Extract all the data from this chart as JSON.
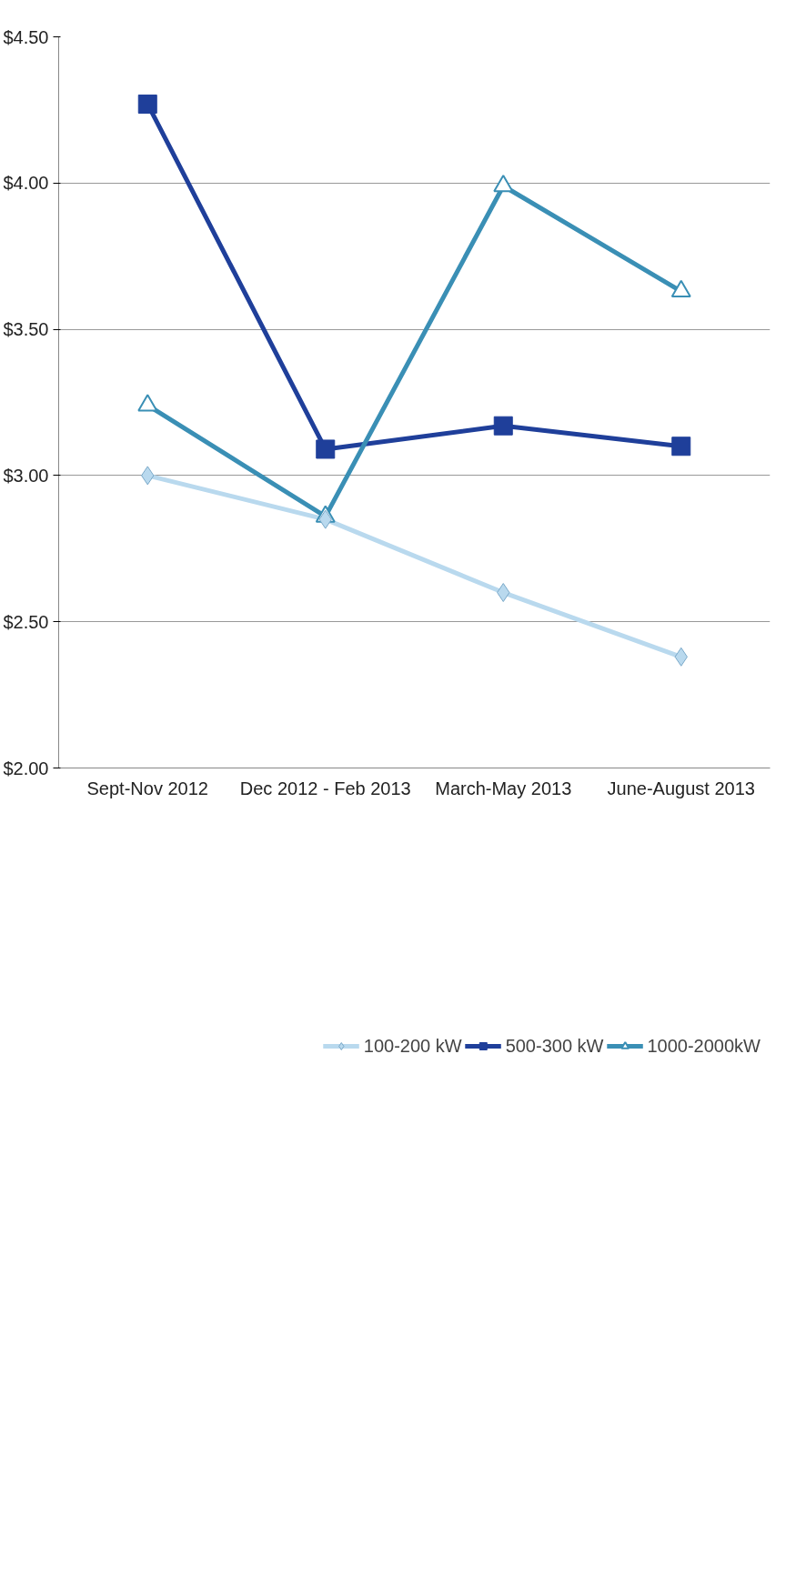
{
  "chart_data": {
    "type": "line",
    "categories": [
      "Sept-Nov 2012",
      "Dec 2012 - Feb 2013",
      "March-May 2013",
      "June-August 2013"
    ],
    "series": [
      {
        "name": "100-200 kW",
        "color": "#b9d9ee",
        "marker": "diamond",
        "values": [
          3.0,
          2.85,
          2.6,
          2.38
        ]
      },
      {
        "name": "500-300 kW",
        "color": "#1f3f9a",
        "marker": "square",
        "values": [
          4.27,
          3.09,
          3.17,
          3.1
        ]
      },
      {
        "name": "1000-2000kW",
        "color": "#3a8fb5",
        "marker": "triangle",
        "values": [
          3.24,
          2.86,
          3.99,
          3.63
        ]
      }
    ],
    "ylim": [
      2.0,
      4.5
    ],
    "yticks": [
      {
        "value": 2.0,
        "label": "$2.00"
      },
      {
        "value": 2.5,
        "label": "$2.50"
      },
      {
        "value": 3.0,
        "label": "$3.00"
      },
      {
        "value": 3.5,
        "label": "$3.50"
      },
      {
        "value": 4.0,
        "label": "$4.00"
      },
      {
        "value": 4.5,
        "label": "$4.50"
      }
    ],
    "grid": "y",
    "legend": "bottom"
  }
}
